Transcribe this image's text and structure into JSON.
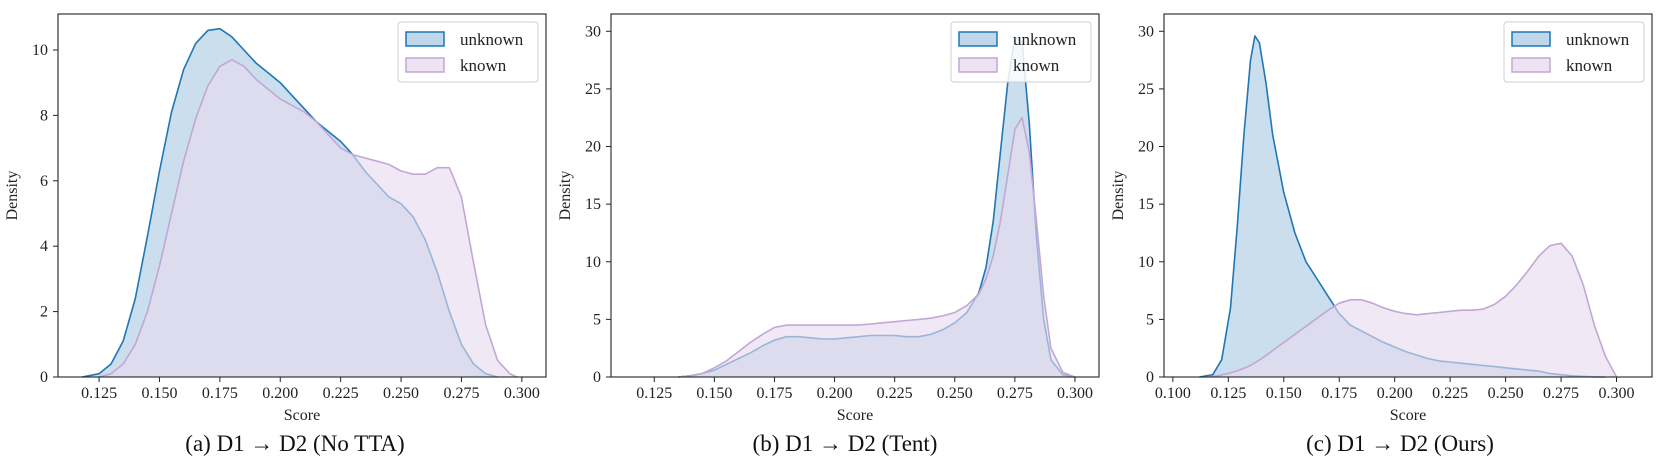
{
  "chart_data": [
    {
      "type": "area",
      "caption": "(a) D1 → D2 (No TTA)",
      "xlabel": "Score",
      "ylabel": "Density",
      "xlim": [
        0.108,
        0.31
      ],
      "ylim": [
        0,
        11.1
      ],
      "xticks": [
        "0.125",
        "0.150",
        "0.175",
        "0.200",
        "0.225",
        "0.250",
        "0.275",
        "0.300"
      ],
      "yticks": [
        "0",
        "2",
        "4",
        "6",
        "8",
        "10"
      ],
      "legend_position": "top-right",
      "series": [
        {
          "name": "unknown",
          "color": "#1f77b4",
          "fill": "#a9c9e2",
          "x": [
            0.118,
            0.125,
            0.13,
            0.135,
            0.14,
            0.145,
            0.15,
            0.155,
            0.16,
            0.165,
            0.17,
            0.175,
            0.18,
            0.185,
            0.19,
            0.195,
            0.2,
            0.205,
            0.21,
            0.215,
            0.22,
            0.225,
            0.23,
            0.235,
            0.24,
            0.245,
            0.25,
            0.255,
            0.26,
            0.265,
            0.27,
            0.275,
            0.28,
            0.285,
            0.29
          ],
          "y": [
            0,
            0.1,
            0.4,
            1.1,
            2.4,
            4.3,
            6.3,
            8.1,
            9.4,
            10.2,
            10.6,
            10.65,
            10.4,
            10.0,
            9.6,
            9.3,
            9.0,
            8.6,
            8.2,
            7.8,
            7.5,
            7.2,
            6.8,
            6.3,
            5.9,
            5.5,
            5.3,
            4.9,
            4.2,
            3.2,
            2.0,
            1.0,
            0.4,
            0.1,
            0
          ]
        },
        {
          "name": "known",
          "color": "#c3a6d6",
          "fill": "#e6dbef",
          "x": [
            0.125,
            0.13,
            0.135,
            0.14,
            0.145,
            0.15,
            0.155,
            0.16,
            0.165,
            0.17,
            0.175,
            0.18,
            0.185,
            0.19,
            0.195,
            0.2,
            0.205,
            0.21,
            0.215,
            0.22,
            0.225,
            0.23,
            0.235,
            0.24,
            0.245,
            0.25,
            0.255,
            0.26,
            0.265,
            0.27,
            0.275,
            0.28,
            0.285,
            0.29,
            0.295,
            0.298
          ],
          "y": [
            0,
            0.1,
            0.4,
            1.0,
            2.0,
            3.4,
            5.0,
            6.6,
            7.9,
            8.9,
            9.5,
            9.7,
            9.5,
            9.1,
            8.8,
            8.5,
            8.3,
            8.1,
            7.8,
            7.4,
            7.0,
            6.8,
            6.7,
            6.6,
            6.5,
            6.3,
            6.2,
            6.2,
            6.4,
            6.4,
            5.5,
            3.5,
            1.6,
            0.5,
            0.1,
            0
          ]
        }
      ]
    },
    {
      "type": "area",
      "caption": "(b) D1 → D2 (Tent)",
      "xlabel": "Score",
      "ylabel": "Density",
      "xlim": [
        0.107,
        0.31
      ],
      "ylim": [
        0,
        31.5
      ],
      "xticks": [
        "0.125",
        "0.150",
        "0.175",
        "0.200",
        "0.225",
        "0.250",
        "0.275",
        "0.300"
      ],
      "yticks": [
        "0",
        "5",
        "10",
        "15",
        "20",
        "25",
        "30"
      ],
      "legend_position": "top-right",
      "series": [
        {
          "name": "unknown",
          "color": "#1f77b4",
          "fill": "#a9c9e2",
          "x": [
            0.135,
            0.14,
            0.145,
            0.15,
            0.155,
            0.16,
            0.165,
            0.17,
            0.175,
            0.18,
            0.185,
            0.19,
            0.195,
            0.2,
            0.205,
            0.21,
            0.215,
            0.22,
            0.225,
            0.23,
            0.235,
            0.24,
            0.245,
            0.25,
            0.255,
            0.26,
            0.263,
            0.266,
            0.269,
            0.272,
            0.275,
            0.278,
            0.281,
            0.284,
            0.287,
            0.29,
            0.295,
            0.3
          ],
          "y": [
            0,
            0.1,
            0.3,
            0.6,
            1.1,
            1.6,
            2.1,
            2.7,
            3.2,
            3.5,
            3.5,
            3.4,
            3.3,
            3.3,
            3.4,
            3.5,
            3.6,
            3.6,
            3.6,
            3.5,
            3.5,
            3.7,
            4.1,
            4.7,
            5.6,
            7.3,
            9.5,
            13.5,
            19.5,
            25.5,
            29.5,
            29.0,
            22.0,
            12.0,
            5.0,
            1.5,
            0.2,
            0
          ]
        },
        {
          "name": "known",
          "color": "#c3a6d6",
          "fill": "#e6dbef",
          "x": [
            0.135,
            0.14,
            0.145,
            0.15,
            0.155,
            0.16,
            0.165,
            0.17,
            0.175,
            0.18,
            0.185,
            0.19,
            0.195,
            0.2,
            0.205,
            0.21,
            0.215,
            0.22,
            0.225,
            0.23,
            0.235,
            0.24,
            0.245,
            0.25,
            0.255,
            0.26,
            0.263,
            0.266,
            0.269,
            0.272,
            0.275,
            0.278,
            0.281,
            0.284,
            0.287,
            0.29,
            0.295,
            0.3
          ],
          "y": [
            0,
            0.1,
            0.3,
            0.8,
            1.4,
            2.2,
            3.0,
            3.7,
            4.3,
            4.5,
            4.5,
            4.5,
            4.5,
            4.5,
            4.5,
            4.5,
            4.6,
            4.7,
            4.8,
            4.9,
            5.0,
            5.1,
            5.3,
            5.6,
            6.2,
            7.2,
            8.5,
            10.5,
            13.5,
            17.5,
            21.5,
            22.5,
            19.5,
            13.5,
            7.0,
            2.5,
            0.4,
            0
          ]
        }
      ]
    },
    {
      "type": "area",
      "caption": "(c) D1 → D2 (Ours)",
      "xlabel": "Score",
      "ylabel": "Density",
      "xlim": [
        0.096,
        0.316
      ],
      "ylim": [
        0,
        31.5
      ],
      "xticks": [
        "0.100",
        "0.125",
        "0.150",
        "0.175",
        "0.200",
        "0.225",
        "0.250",
        "0.275",
        "0.300"
      ],
      "yticks": [
        "0",
        "5",
        "10",
        "15",
        "20",
        "25",
        "30"
      ],
      "legend_position": "top-right",
      "series": [
        {
          "name": "unknown",
          "color": "#1f77b4",
          "fill": "#a9c9e2",
          "x": [
            0.112,
            0.118,
            0.122,
            0.126,
            0.129,
            0.132,
            0.135,
            0.137,
            0.139,
            0.142,
            0.145,
            0.15,
            0.155,
            0.16,
            0.165,
            0.17,
            0.175,
            0.18,
            0.185,
            0.19,
            0.195,
            0.2,
            0.205,
            0.21,
            0.215,
            0.22,
            0.225,
            0.23,
            0.235,
            0.24,
            0.245,
            0.25,
            0.255,
            0.26,
            0.265,
            0.27,
            0.275,
            0.28,
            0.285,
            0.29,
            0.295
          ],
          "y": [
            0,
            0.2,
            1.5,
            6.0,
            13.0,
            21.0,
            27.5,
            29.6,
            29.0,
            25.5,
            21.0,
            16.0,
            12.5,
            10.0,
            8.5,
            7.0,
            5.5,
            4.5,
            4.0,
            3.5,
            3.0,
            2.6,
            2.2,
            1.9,
            1.6,
            1.4,
            1.3,
            1.2,
            1.1,
            1.0,
            0.9,
            0.8,
            0.7,
            0.6,
            0.5,
            0.3,
            0.2,
            0.1,
            0.05,
            0.02,
            0
          ]
        },
        {
          "name": "known",
          "color": "#c3a6d6",
          "fill": "#e6dbef",
          "x": [
            0.115,
            0.12,
            0.125,
            0.13,
            0.135,
            0.14,
            0.145,
            0.15,
            0.155,
            0.16,
            0.165,
            0.17,
            0.175,
            0.18,
            0.185,
            0.19,
            0.195,
            0.2,
            0.205,
            0.21,
            0.215,
            0.22,
            0.225,
            0.23,
            0.235,
            0.24,
            0.245,
            0.25,
            0.255,
            0.26,
            0.265,
            0.27,
            0.275,
            0.28,
            0.285,
            0.29,
            0.295,
            0.3
          ],
          "y": [
            0,
            0.1,
            0.3,
            0.6,
            1.0,
            1.6,
            2.3,
            3.0,
            3.7,
            4.4,
            5.1,
            5.8,
            6.4,
            6.7,
            6.7,
            6.4,
            6.0,
            5.7,
            5.5,
            5.4,
            5.5,
            5.6,
            5.7,
            5.8,
            5.8,
            5.9,
            6.3,
            7.0,
            8.0,
            9.2,
            10.5,
            11.4,
            11.6,
            10.5,
            8.0,
            4.5,
            1.8,
            0
          ]
        }
      ]
    }
  ]
}
